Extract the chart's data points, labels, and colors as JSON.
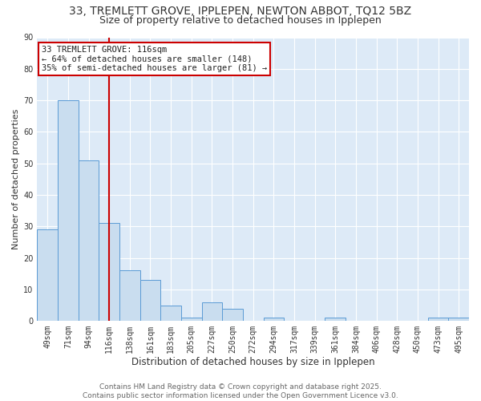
{
  "title": "33, TREMLETT GROVE, IPPLEPEN, NEWTON ABBOT, TQ12 5BZ",
  "subtitle": "Size of property relative to detached houses in Ipplepen",
  "xlabel": "Distribution of detached houses by size in Ipplepen",
  "ylabel": "Number of detached properties",
  "categories": [
    "49sqm",
    "71sqm",
    "94sqm",
    "116sqm",
    "138sqm",
    "161sqm",
    "183sqm",
    "205sqm",
    "227sqm",
    "250sqm",
    "272sqm",
    "294sqm",
    "317sqm",
    "339sqm",
    "361sqm",
    "384sqm",
    "406sqm",
    "428sqm",
    "450sqm",
    "473sqm",
    "495sqm"
  ],
  "values": [
    29,
    70,
    51,
    31,
    16,
    13,
    5,
    1,
    6,
    4,
    0,
    1,
    0,
    0,
    1,
    0,
    0,
    0,
    0,
    1,
    1
  ],
  "highlight_index": 3,
  "highlight_color": "#cc0000",
  "bar_color": "#c9ddef",
  "bar_edge_color": "#5b9bd5",
  "background_color": "#ffffff",
  "plot_bg_color": "#ddeaf7",
  "annotation_text": "33 TREMLETT GROVE: 116sqm\n← 64% of detached houses are smaller (148)\n35% of semi-detached houses are larger (81) →",
  "annotation_box_color": "#ffffff",
  "annotation_border_color": "#cc0000",
  "ylim": [
    0,
    90
  ],
  "yticks": [
    0,
    10,
    20,
    30,
    40,
    50,
    60,
    70,
    80,
    90
  ],
  "footer": "Contains HM Land Registry data © Crown copyright and database right 2025.\nContains public sector information licensed under the Open Government Licence v3.0.",
  "title_fontsize": 10,
  "subtitle_fontsize": 9,
  "xlabel_fontsize": 8.5,
  "ylabel_fontsize": 8,
  "tick_fontsize": 7,
  "footer_fontsize": 6.5
}
